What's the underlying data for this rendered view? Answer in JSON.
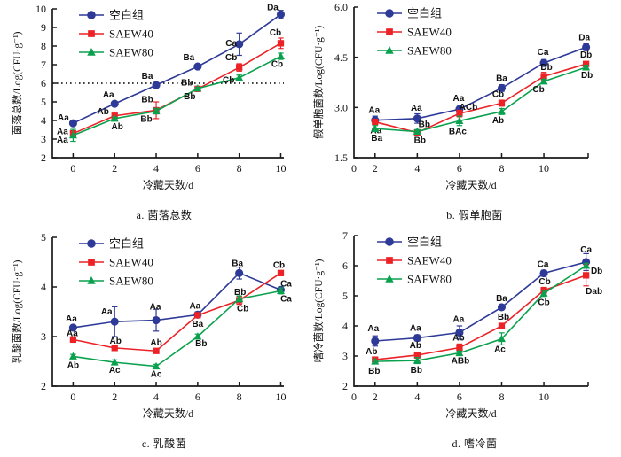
{
  "page": {
    "background": "#ffffff"
  },
  "colors": {
    "blank": "#2e3a97",
    "saew40": "#ec2227",
    "saew80": "#0aa14e",
    "axis": "#1a1a1a",
    "reference_line": "#000000",
    "point_label": "#000000"
  },
  "legend": {
    "items": [
      {
        "label": "空白组",
        "series": "blank",
        "marker": "circle"
      },
      {
        "label": "SAEW40",
        "series": "saew40",
        "marker": "square"
      },
      {
        "label": "SAEW80",
        "series": "saew80",
        "marker": "triangle"
      }
    ]
  },
  "chart_data": [
    {
      "id": "a",
      "type": "line",
      "caption": "a. 菌落总数",
      "xlabel": "冷藏天数/d",
      "ylabel": "菌落总数/Log(CFU·g⁻¹)",
      "xlim": [
        -1.0,
        10.15
      ],
      "ylim": [
        2,
        10
      ],
      "xticks": [
        0,
        2,
        4,
        6,
        8,
        10
      ],
      "yticks": [
        2,
        3,
        4,
        5,
        6,
        7,
        8,
        9,
        10
      ],
      "ytick_decimals": 0,
      "end_tick": false,
      "zero_label_at_origin": false,
      "reference_line_y": 6,
      "grid": false,
      "legend_position": "top-left",
      "x": [
        0,
        2,
        4,
        6,
        8,
        10
      ],
      "series": [
        {
          "name": "空白组",
          "key": "blank",
          "marker": "circle",
          "values": [
            3.85,
            4.9,
            5.9,
            6.9,
            8.1,
            9.7
          ],
          "errors": [
            0.08,
            0.12,
            0.08,
            0.08,
            0.6,
            0.22
          ],
          "labels": [
            "Aa",
            "Aa",
            "Ba",
            "Ba",
            "Ca",
            "Da"
          ],
          "label_offsets": [
            [
              -11,
              -3
            ],
            [
              -7,
              -7
            ],
            [
              -10,
              -7
            ],
            [
              -10,
              -7
            ],
            [
              -9,
              2
            ],
            [
              -9,
              -5
            ]
          ]
        },
        {
          "name": "SAEW40",
          "key": "saew40",
          "marker": "square",
          "values": [
            3.3,
            4.25,
            4.55,
            5.7,
            6.85,
            8.15
          ],
          "errors": [
            0.15,
            0.2,
            0.45,
            0.06,
            0.2,
            0.28
          ],
          "labels": [
            "Aa",
            "Ab",
            "Bb",
            "Bb",
            "Cb",
            "Cb"
          ],
          "label_offsets": [
            [
              -12,
              1
            ],
            [
              -13,
              -2
            ],
            [
              -10,
              -9
            ],
            [
              -12,
              -4
            ],
            [
              -9,
              -8
            ],
            [
              -6,
              -9
            ]
          ]
        },
        {
          "name": "SAEW80",
          "key": "saew80",
          "marker": "triangle",
          "values": [
            3.2,
            4.1,
            4.5,
            5.72,
            6.3,
            7.45
          ],
          "errors": [
            0.32,
            0.08,
            0.15,
            0.06,
            0.14,
            0.17
          ],
          "labels": [
            "Aa",
            "Ab",
            "Bb",
            "Bb",
            "Cb",
            "Cb"
          ],
          "label_offsets": [
            [
              -12,
              8
            ],
            [
              3,
              12
            ],
            [
              -11,
              12
            ],
            [
              -9,
              12
            ],
            [
              -12,
              6
            ],
            [
              -4,
              12
            ]
          ]
        }
      ]
    },
    {
      "id": "b",
      "type": "line",
      "caption": "b. 假单胞菌",
      "xlabel": "冷藏天数/d",
      "ylabel": "假单胞菌数/Log(CFU·g⁻¹)",
      "xlim": [
        1,
        12.1
      ],
      "ylim": [
        1.5,
        6.0
      ],
      "xticks": [
        2,
        4,
        6,
        8,
        10
      ],
      "yticks": [
        1.5,
        3.0,
        4.5,
        6.0
      ],
      "ytick_decimals": 1,
      "end_tick": true,
      "zero_label_at_origin": true,
      "reference_line_y": null,
      "grid": false,
      "legend_position": "top-left",
      "x": [
        2,
        4,
        6,
        8,
        10,
        12
      ],
      "series": [
        {
          "name": "空白组",
          "key": "blank",
          "marker": "circle",
          "values": [
            2.62,
            2.67,
            2.95,
            3.58,
            4.33,
            4.8
          ],
          "errors": [
            0.12,
            0.14,
            0.12,
            0.1,
            0.1,
            0.1
          ],
          "labels": [
            "Aa",
            "Aa",
            "Aa",
            "Ba",
            "Ca",
            "Da"
          ],
          "label_offsets": [
            [
              -1,
              -8
            ],
            [
              -1,
              -9
            ],
            [
              -1,
              -9
            ],
            [
              0,
              -8
            ],
            [
              -1,
              -9
            ],
            [
              -2,
              -8
            ]
          ]
        },
        {
          "name": "SAEW40",
          "key": "saew40",
          "marker": "square",
          "values": [
            2.57,
            2.25,
            2.82,
            3.13,
            3.93,
            4.3
          ],
          "errors": [
            0.06,
            0.07,
            0.1,
            0.09,
            0.12,
            0.05
          ],
          "labels": [
            "Aa",
            "Bb",
            "ACb",
            "Cb",
            "Db",
            "Db"
          ],
          "label_offsets": [
            [
              1,
              13
            ],
            [
              8,
              -6
            ],
            [
              10,
              -4
            ],
            [
              -4,
              -7
            ],
            [
              3,
              -7
            ],
            [
              0,
              -7
            ]
          ]
        },
        {
          "name": "SAEW80",
          "key": "saew80",
          "marker": "triangle",
          "values": [
            2.37,
            2.28,
            2.6,
            2.88,
            3.78,
            4.2
          ],
          "errors": [
            0.09,
            0.06,
            0.14,
            0.09,
            0.06,
            0.06
          ],
          "labels": [
            "Ba",
            "Bb",
            "BAc",
            "Ab",
            "Cb",
            "Db"
          ],
          "label_offsets": [
            [
              2,
              14
            ],
            [
              3,
              13
            ],
            [
              -2,
              15
            ],
            [
              -4,
              13
            ],
            [
              -6,
              12
            ],
            [
              1,
              12
            ]
          ]
        }
      ]
    },
    {
      "id": "c",
      "type": "line",
      "caption": "c. 乳酸菌",
      "xlabel": "冷藏天数/d",
      "ylabel": "乳酸菌数/Log(CFU·g⁻¹)",
      "xlim": [
        -1.0,
        10.15
      ],
      "ylim": [
        2,
        5
      ],
      "xticks": [
        0,
        2,
        4,
        6,
        8,
        10
      ],
      "yticks": [
        2,
        3,
        4,
        5
      ],
      "ytick_decimals": 0,
      "end_tick": false,
      "zero_label_at_origin": false,
      "reference_line_y": null,
      "grid": false,
      "legend_position": "top-left",
      "x": [
        0,
        2,
        4,
        6,
        8,
        10
      ],
      "series": [
        {
          "name": "空白组",
          "key": "blank",
          "marker": "circle",
          "values": [
            3.18,
            3.3,
            3.33,
            3.44,
            4.28,
            3.94
          ],
          "errors": [
            0.05,
            0.3,
            0.22,
            0.06,
            0.12,
            0.06
          ],
          "labels": [
            "Aa",
            "Aa",
            "Aa",
            "Aa",
            "Ba",
            "Ca"
          ],
          "label_offsets": [
            [
              -2,
              -7
            ],
            [
              -9,
              -8
            ],
            [
              -1,
              -12
            ],
            [
              -3,
              -7
            ],
            [
              -2,
              -8
            ],
            [
              6,
              -4
            ]
          ]
        },
        {
          "name": "SAEW40",
          "key": "saew40",
          "marker": "square",
          "values": [
            2.94,
            2.77,
            2.71,
            3.43,
            3.73,
            4.28
          ],
          "errors": [
            0.05,
            0.04,
            0.04,
            0.05,
            0.08,
            0.05
          ],
          "labels": [
            "Aa",
            "Ab",
            "Ab",
            "Ba",
            "Bb",
            "Cb"
          ],
          "label_offsets": [
            [
              -1,
              -4
            ],
            [
              1,
              -5
            ],
            [
              0,
              -6
            ],
            [
              0,
              13
            ],
            [
              1,
              -6
            ],
            [
              -2,
              -6
            ]
          ]
        },
        {
          "name": "SAEW80",
          "key": "saew80",
          "marker": "triangle",
          "values": [
            2.6,
            2.48,
            2.4,
            3.0,
            3.76,
            3.92
          ],
          "errors": [
            0.04,
            0.05,
            0.04,
            0.05,
            0.06,
            0.06
          ],
          "labels": [
            "Ab",
            "Ac",
            "Ac",
            "Bb",
            "Cb",
            "Ca"
          ],
          "label_offsets": [
            [
              0,
              13
            ],
            [
              0,
              12
            ],
            [
              0,
              12
            ],
            [
              4,
              11
            ],
            [
              4,
              14
            ],
            [
              6,
              12
            ]
          ]
        }
      ]
    },
    {
      "id": "d",
      "type": "line",
      "caption": "d. 嗜冷菌",
      "xlabel": "冷藏天数/d",
      "ylabel": "嗜冷菌数/Log(CFU·g⁻¹)",
      "xlim": [
        1,
        12.1
      ],
      "ylim": [
        2,
        7
      ],
      "xticks": [
        2,
        4,
        6,
        8,
        10
      ],
      "yticks": [
        2,
        3,
        4,
        5,
        6,
        7
      ],
      "ytick_decimals": 0,
      "end_tick": true,
      "zero_label_at_origin": true,
      "reference_line_y": null,
      "grid": false,
      "legend_position": "top-left",
      "x": [
        2,
        4,
        6,
        8,
        10,
        12
      ],
      "series": [
        {
          "name": "空白组",
          "key": "blank",
          "marker": "circle",
          "values": [
            3.5,
            3.6,
            3.78,
            4.62,
            5.75,
            6.12
          ],
          "errors": [
            0.17,
            0.1,
            0.22,
            0.06,
            0.1,
            0.28
          ],
          "labels": [
            "Aa",
            "Aa",
            "Aa",
            "Ba",
            "Ca",
            "Ca"
          ],
          "label_offsets": [
            [
              -2,
              -11
            ],
            [
              -2,
              -8
            ],
            [
              -1,
              -12
            ],
            [
              0,
              -7
            ],
            [
              -1,
              -7
            ],
            [
              0,
              -11
            ]
          ]
        },
        {
          "name": "SAEW40",
          "key": "saew40",
          "marker": "square",
          "values": [
            2.88,
            3.03,
            3.28,
            4.0,
            5.18,
            5.68
          ],
          "errors": [
            0.05,
            0.1,
            0.12,
            0.06,
            0.1,
            0.35
          ],
          "labels": [
            "Ab",
            "Ab",
            "Ab",
            "Bb",
            "Cb",
            "Db"
          ],
          "label_offsets": [
            [
              -4,
              -6
            ],
            [
              -2,
              -8
            ],
            [
              -1,
              -8
            ],
            [
              2,
              -7
            ],
            [
              1,
              -7
            ],
            [
              12,
              -2
            ]
          ]
        },
        {
          "name": "SAEW80",
          "key": "saew80",
          "marker": "triangle",
          "values": [
            2.82,
            2.85,
            3.1,
            3.57,
            5.08,
            6.0
          ],
          "errors": [
            0.05,
            0.1,
            0.06,
            0.2,
            0.1,
            0.08
          ],
          "labels": [
            "Bb",
            "Bb",
            "ABb",
            "Ac",
            "Cb",
            "Dab"
          ],
          "label_offsets": [
            [
              -1,
              14
            ],
            [
              -1,
              14
            ],
            [
              1,
              12
            ],
            [
              -2,
              15
            ],
            [
              0,
              13
            ],
            [
              9,
              32
            ]
          ]
        }
      ]
    }
  ]
}
